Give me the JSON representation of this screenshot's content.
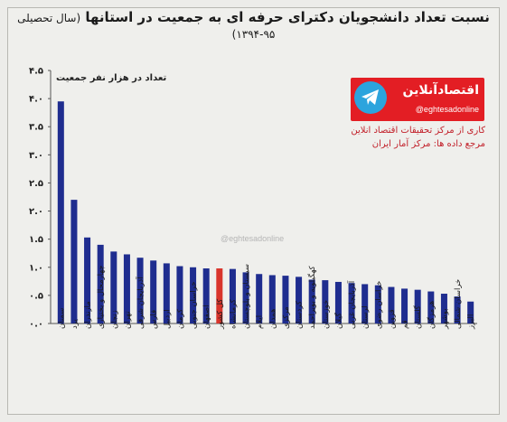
{
  "header": {
    "title": "نسبت تعداد دانشجویان دکترای حرفه ای به جمعیت در استانها",
    "subtitle": "(سال تحصیلی ۹۵-۱۳۹۴)"
  },
  "brand": {
    "name": "اقتصادآنلاین",
    "handle": "@eghtesadonline",
    "credit_line1": "کاری از مرکز تحقیقات اقتصاد انلاین",
    "credit_line2": "مرجع داده ها: مرکز آمار ایران",
    "watermark": "@eghtesadonline"
  },
  "colors": {
    "bar": "#1f2d8f",
    "highlight": "#d9352b",
    "brand_red": "#e31e24",
    "telegram": "#2ca4dd"
  },
  "chart_data": {
    "type": "bar",
    "title": "نسبت تعداد دانشجویان دکترای حرفه ای به جمعیت در استانها (سال تحصیلی ۹۵-۱۳۹۴)",
    "ylabel": "تعداد در هزار نفر جمعیت",
    "xlabel": "",
    "ylim": [
      0,
      4.5
    ],
    "yticks": [
      "۰.۰",
      "۰.۵",
      "۱.۰",
      "۱.۵",
      "۲.۰",
      "۲.۵",
      "۳.۰",
      "۳.۵",
      "۴.۰",
      "۴.۵"
    ],
    "grid": false,
    "highlight_category": "کل کشور",
    "categories": [
      "سمنان",
      "یزد",
      "مازندران",
      "چهارمحال و بختیاری",
      "زنجان",
      "تهران",
      "آذربایجان شرقی",
      "فارس",
      "اردبیل",
      "کرمان",
      "خراسان جنوبی",
      "اصفهان",
      "کل کشور",
      "کرمانشاه",
      "سیستان و بلوچستان",
      "ایلام",
      "همدان",
      "مرکزی",
      "کردستان",
      "کهگیلویه و بویراحمد",
      "خوزستان",
      "گیلان",
      "آذربایجان غربی",
      "لرستان",
      "خراسان رضوی",
      "قزوین",
      "قم",
      "گلستان",
      "هرمزگان",
      "بوشهر",
      "خراسان شمالی",
      "البرز"
    ],
    "values": [
      3.95,
      2.2,
      1.53,
      1.4,
      1.28,
      1.23,
      1.17,
      1.12,
      1.07,
      1.02,
      1.0,
      0.98,
      0.98,
      0.97,
      0.91,
      0.88,
      0.86,
      0.85,
      0.83,
      0.78,
      0.77,
      0.74,
      0.72,
      0.7,
      0.68,
      0.65,
      0.62,
      0.6,
      0.57,
      0.53,
      0.48,
      0.39
    ]
  }
}
